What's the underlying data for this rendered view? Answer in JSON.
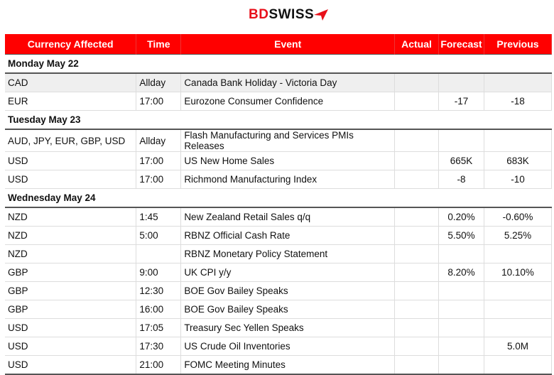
{
  "brand": {
    "logo_part1": "BD",
    "logo_part2": "SWISS",
    "accent": "#ff0000"
  },
  "headers": [
    "Currency Affected",
    "Time",
    "Event",
    "Actual",
    "Forecast",
    "Previous"
  ],
  "sections": [
    {
      "day": "Monday May 22",
      "rows": [
        {
          "currency": "CAD",
          "time": "Allday",
          "event": "Canada Bank Holiday - Victoria Day",
          "actual": "",
          "forecast": "",
          "previous": ""
        },
        {
          "currency": "EUR",
          "time": "17:00",
          "event": "Eurozone Consumer Confidence",
          "actual": "",
          "forecast": "-17",
          "previous": "-18"
        }
      ]
    },
    {
      "day": "Tuesday May 23",
      "rows": [
        {
          "currency": "AUD, JPY, EUR, GBP, USD",
          "time": "Allday",
          "event": "Flash Manufacturing and Services PMIs Releases",
          "actual": "",
          "forecast": "",
          "previous": ""
        },
        {
          "currency": "USD",
          "time": "17:00",
          "event": "US New Home Sales",
          "actual": "",
          "forecast": "665K",
          "previous": "683K"
        },
        {
          "currency": "USD",
          "time": "17:00",
          "event": "Richmond Manufacturing Index",
          "actual": "",
          "forecast": "-8",
          "previous": "-10"
        }
      ]
    },
    {
      "day": "Wednesday May 24",
      "rows": [
        {
          "currency": "NZD",
          "time": "1:45",
          "event": "New Zealand Retail Sales q/q",
          "actual": "",
          "forecast": "0.20%",
          "previous": "-0.60%"
        },
        {
          "currency": "NZD",
          "time": "5:00",
          "event": "RBNZ Official Cash Rate",
          "actual": "",
          "forecast": "5.50%",
          "previous": "5.25%"
        },
        {
          "currency": "NZD",
          "time": "",
          "event": "RBNZ Monetary Policy Statement",
          "actual": "",
          "forecast": "",
          "previous": ""
        },
        {
          "currency": "GBP",
          "time": "9:00",
          "event": "UK CPI y/y",
          "actual": "",
          "forecast": "8.20%",
          "previous": "10.10%"
        },
        {
          "currency": "GBP",
          "time": "12:30",
          "event": "BOE Gov Bailey Speaks",
          "actual": "",
          "forecast": "",
          "previous": ""
        },
        {
          "currency": "GBP",
          "time": "16:00",
          "event": "BOE Gov Bailey Speaks",
          "actual": "",
          "forecast": "",
          "previous": ""
        },
        {
          "currency": "USD",
          "time": "17:05",
          "event": "Treasury Sec Yellen Speaks",
          "actual": "",
          "forecast": "",
          "previous": ""
        },
        {
          "currency": "USD",
          "time": "17:30",
          "event": "US Crude Oil Inventories",
          "actual": "",
          "forecast": "",
          "previous": "5.0M"
        },
        {
          "currency": "USD",
          "time": "21:00",
          "event": "FOMC Meeting Minutes",
          "actual": "",
          "forecast": "",
          "previous": ""
        }
      ]
    }
  ]
}
